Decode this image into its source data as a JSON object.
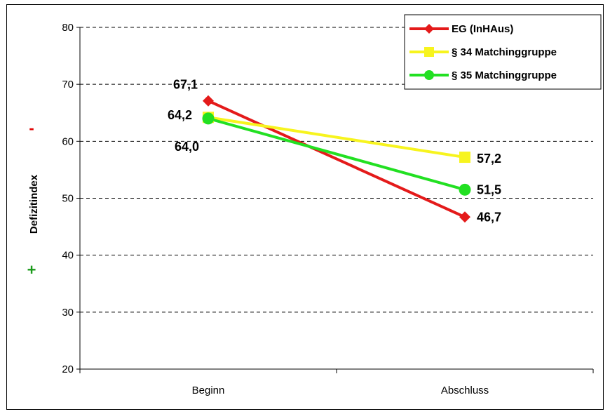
{
  "chart_data": {
    "type": "line",
    "title": "",
    "xlabel": "",
    "ylabel": "Defizitindex",
    "categories": [
      "Beginn",
      "Abschluss"
    ],
    "ylim": [
      20,
      80
    ],
    "yticks": [
      20,
      30,
      40,
      50,
      60,
      70,
      80
    ],
    "grid": "horizontal dashed",
    "legend_position": "top-right",
    "y_markers": {
      "minus": {
        "text": "-",
        "color": "#e00000"
      },
      "plus": {
        "text": "+",
        "color": "#1a9a1a"
      }
    },
    "series": [
      {
        "name": "EG (InHAus)",
        "values": [
          67.1,
          46.7
        ],
        "labels": [
          "67,1",
          "46,7"
        ],
        "color": "#e41a1a",
        "marker": "diamond"
      },
      {
        "name": "§ 34 Matchinggruppe",
        "values": [
          64.2,
          57.2
        ],
        "labels": [
          "64,2",
          "57,2"
        ],
        "color": "#f7f41e",
        "marker": "square"
      },
      {
        "name": "§ 35 Matchinggruppe",
        "values": [
          64.0,
          51.5
        ],
        "labels": [
          "64,0",
          "51,5"
        ],
        "color": "#22e022",
        "marker": "circle"
      }
    ]
  }
}
